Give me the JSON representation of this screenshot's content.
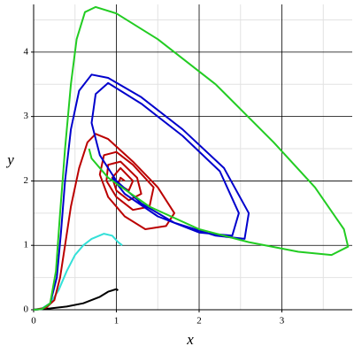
{
  "chart_data": {
    "type": "line",
    "xlabel": "x",
    "ylabel": "y",
    "xlim": [
      0,
      3.85
    ],
    "ylim": [
      0,
      4.74
    ],
    "xticks": [
      0,
      1,
      2,
      3
    ],
    "yticks": [
      0,
      1,
      2,
      3,
      4
    ],
    "minor_xticks": [
      0.5,
      1.5,
      2.5,
      3.5
    ],
    "minor_yticks": [
      0.5,
      1.5,
      2.5,
      3.5,
      4.5
    ],
    "grid": true,
    "series": [
      {
        "color": "#000000",
        "x": [
          0,
          0.2,
          0.4,
          0.6,
          0.8,
          0.9,
          1.0,
          1.02
        ],
        "values": [
          0,
          0.02,
          0.05,
          0.1,
          0.2,
          0.28,
          0.32,
          0.3
        ]
      },
      {
        "color": "#33e0d8",
        "x": [
          0,
          0.1,
          0.2,
          0.3,
          0.4,
          0.5,
          0.6,
          0.7,
          0.85,
          0.95,
          1.02,
          1.07
        ],
        "values": [
          0,
          0.02,
          0.1,
          0.3,
          0.6,
          0.85,
          1.0,
          1.1,
          1.18,
          1.15,
          1.05,
          1.0
        ]
      },
      {
        "color": "#bb0000",
        "x": [
          0,
          0.15,
          0.25,
          0.32,
          0.38,
          0.45,
          0.55,
          0.65,
          0.75,
          0.9,
          1.2,
          1.5,
          1.7,
          1.6,
          1.35,
          1.1,
          0.9,
          0.8,
          0.85,
          1.0,
          1.2,
          1.45,
          1.4,
          1.2,
          1.0,
          0.88,
          0.9,
          1.05,
          1.25,
          1.3,
          1.15,
          1.0,
          0.95,
          1.05,
          1.2,
          1.15,
          1.02,
          1.05,
          1.1
        ],
        "values": [
          0,
          0.03,
          0.15,
          0.5,
          1.0,
          1.6,
          2.2,
          2.6,
          2.73,
          2.65,
          2.3,
          1.9,
          1.5,
          1.3,
          1.25,
          1.45,
          1.75,
          2.1,
          2.4,
          2.45,
          2.25,
          1.9,
          1.6,
          1.55,
          1.75,
          2.0,
          2.25,
          2.3,
          2.05,
          1.8,
          1.7,
          1.85,
          2.05,
          2.2,
          2.0,
          1.85,
          1.95,
          2.05,
          2.0
        ]
      },
      {
        "color": "#0000cc",
        "x": [
          0,
          0.1,
          0.2,
          0.28,
          0.33,
          0.38,
          0.45,
          0.55,
          0.7,
          0.9,
          1.3,
          1.8,
          2.3,
          2.6,
          2.55,
          2.2,
          1.7,
          1.3,
          1.0,
          0.8,
          0.7,
          0.75,
          0.9,
          1.3,
          1.8,
          2.25,
          2.48,
          2.4,
          2.0,
          1.5,
          1.1,
          0.95
        ],
        "values": [
          0,
          0.01,
          0.1,
          0.5,
          1.2,
          2.0,
          2.8,
          3.4,
          3.65,
          3.6,
          3.3,
          2.8,
          2.2,
          1.5,
          1.1,
          1.15,
          1.35,
          1.65,
          2.0,
          2.4,
          2.9,
          3.35,
          3.52,
          3.2,
          2.7,
          2.15,
          1.5,
          1.15,
          1.2,
          1.45,
          1.8,
          2.05
        ]
      },
      {
        "color": "#22cc22",
        "x": [
          0,
          0.1,
          0.2,
          0.27,
          0.32,
          0.38,
          0.45,
          0.52,
          0.62,
          0.75,
          1.0,
          1.5,
          2.2,
          2.9,
          3.4,
          3.75,
          3.8,
          3.6,
          3.2,
          2.6,
          2.0,
          1.4,
          0.9,
          0.7,
          0.67
        ],
        "values": [
          0,
          0.01,
          0.1,
          0.6,
          1.5,
          2.5,
          3.5,
          4.2,
          4.62,
          4.7,
          4.6,
          4.2,
          3.5,
          2.6,
          1.9,
          1.25,
          0.98,
          0.85,
          0.9,
          1.05,
          1.25,
          1.6,
          2.05,
          2.35,
          2.5
        ]
      }
    ]
  }
}
